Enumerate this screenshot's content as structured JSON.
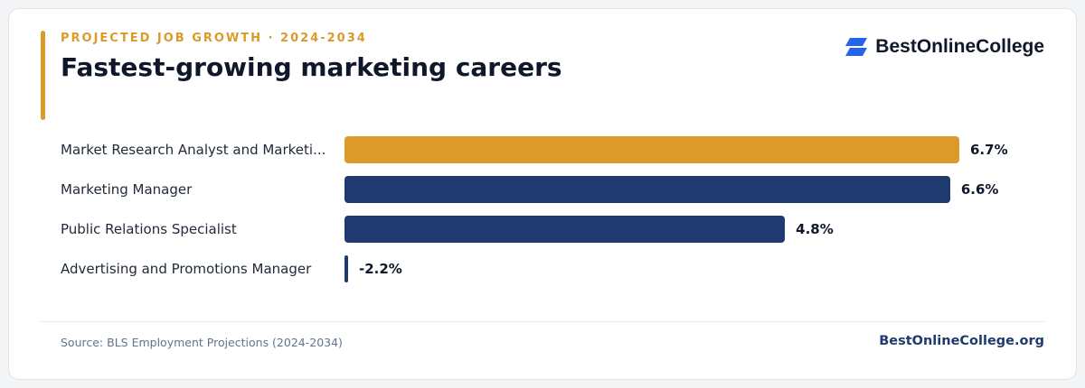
{
  "header": {
    "eyebrow": "PROJECTED JOB GROWTH · 2024-2034",
    "title": "Fastest-growing marketing careers"
  },
  "brand": {
    "name": "BestOnlineCollege",
    "icon": "stacked-parallelogram-logo-icon"
  },
  "colors": {
    "accent": "#db9a2a",
    "primary": "#1e3a6e",
    "brand_icon": "#2563eb"
  },
  "chart_data": {
    "type": "bar",
    "orientation": "horizontal",
    "categories": [
      "Market Research Analyst and Marketi...",
      "Marketing Manager",
      "Public Relations Specialist",
      "Advertising and Promotions Manager"
    ],
    "values": [
      6.7,
      6.6,
      4.8,
      -2.2
    ],
    "value_labels": [
      "6.7%",
      "6.6%",
      "4.8%",
      "-2.2%"
    ],
    "highlight_index": 0,
    "title": "Fastest-growing marketing careers",
    "xlabel": "",
    "ylabel": "",
    "grid": false
  },
  "footer": {
    "source": "Source: BLS Employment Projections (2024-2034)",
    "site": "BestOnlineCollege.org"
  }
}
